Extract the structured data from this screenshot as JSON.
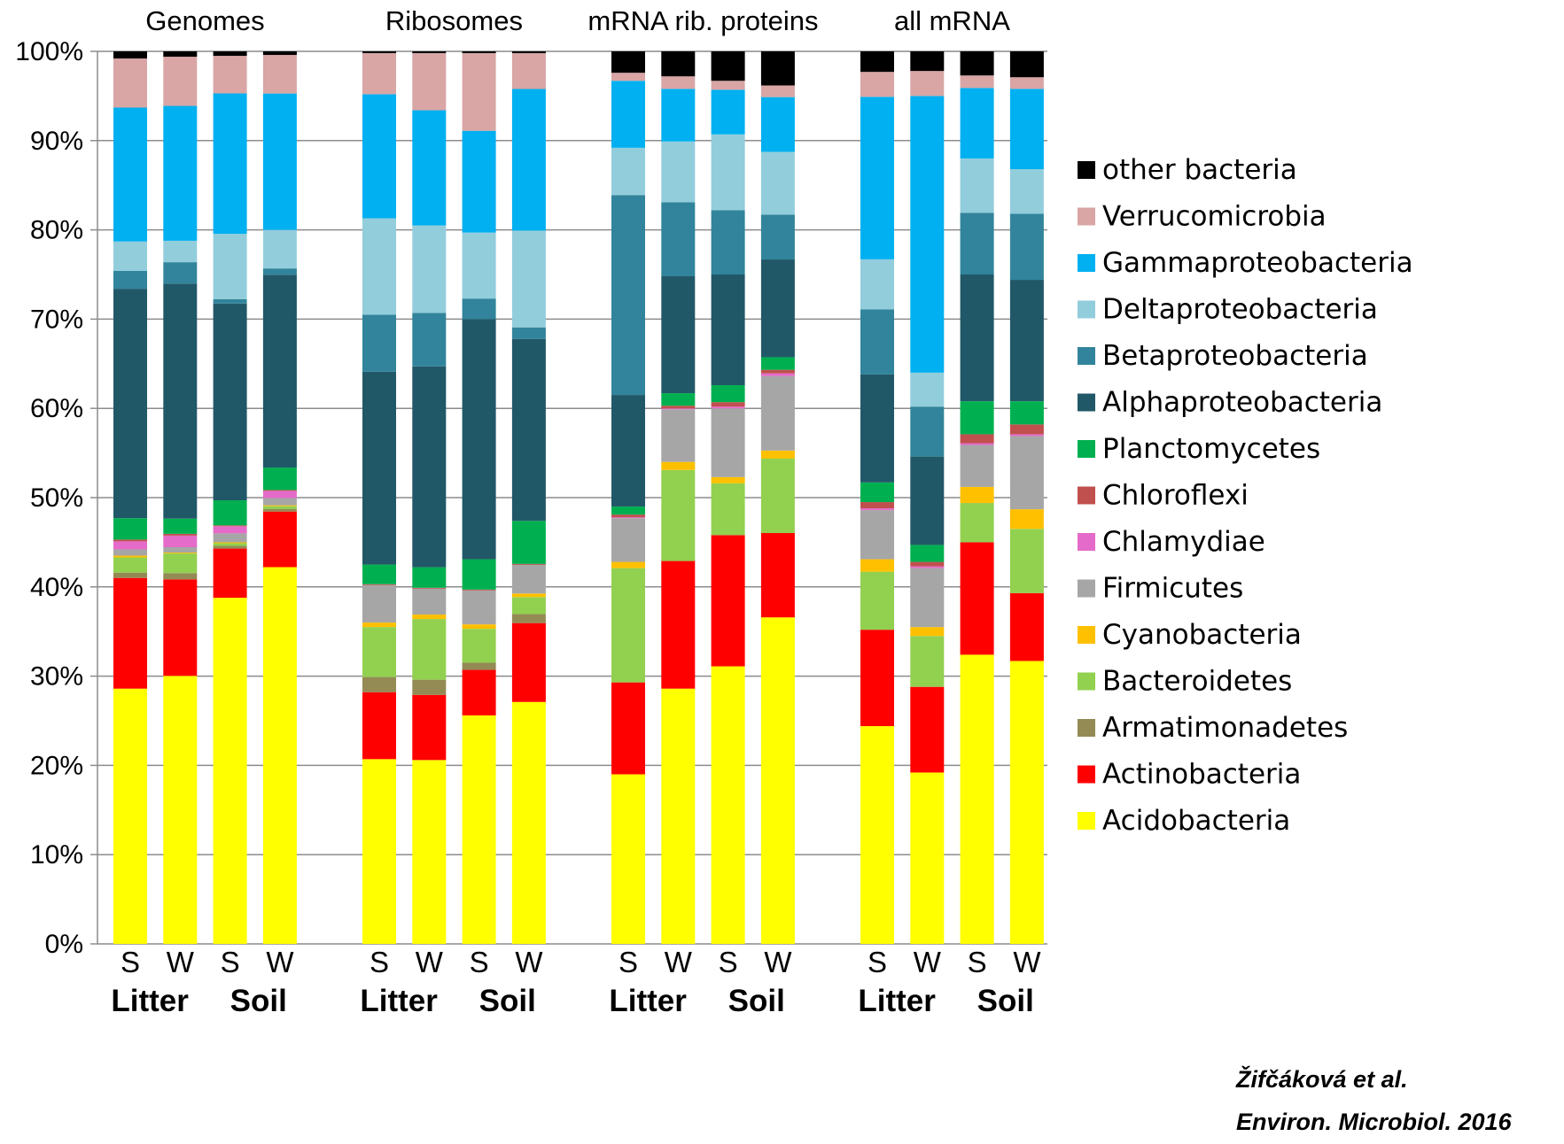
{
  "chart_data": {
    "type": "stacked-bar-100",
    "ylim": [
      0,
      100
    ],
    "yticks": [
      "0%",
      "10%",
      "20%",
      "30%",
      "40%",
      "50%",
      "60%",
      "70%",
      "80%",
      "90%",
      "100%"
    ],
    "legend_position": "right",
    "grid": true,
    "series": [
      {
        "name": "Acidobacteria",
        "color": "#ffff00"
      },
      {
        "name": "Actinobacteria",
        "color": "#ff0000"
      },
      {
        "name": "Armatimonadetes",
        "color": "#948a54"
      },
      {
        "name": "Bacteroidetes",
        "color": "#92d050"
      },
      {
        "name": "Cyanobacteria",
        "color": "#ffc000"
      },
      {
        "name": "Firmicutes",
        "color": "#a6a6a6"
      },
      {
        "name": "Chlamydiae",
        "color": "#e46bc9"
      },
      {
        "name": "Chloroflexi",
        "color": "#c0504d"
      },
      {
        "name": "Planctomycetes",
        "color": "#00b050"
      },
      {
        "name": "Alphaproteobacteria",
        "color": "#215868"
      },
      {
        "name": "Betaproteobacteria",
        "color": "#31849b"
      },
      {
        "name": "Deltaproteobacteria",
        "color": "#92cddc"
      },
      {
        "name": "Gammaproteobacteria",
        "color": "#00b0f0"
      },
      {
        "name": "Verrucomicrobia",
        "color": "#d9a5a5"
      },
      {
        "name": "other bacteria",
        "color": "#000000"
      }
    ],
    "groups": [
      {
        "title": "Genomes",
        "bars": [
          {
            "label": "S",
            "values": [
              28.6,
              12.4,
              0.6,
              1.7,
              0.2,
              0.7,
              0.9,
              0.2,
              2.4,
              25.7,
              2.0,
              3.3,
              15.0,
              5.5,
              0.8
            ]
          },
          {
            "label": "W",
            "values": [
              30.0,
              10.8,
              0.7,
              2.2,
              0.1,
              0.6,
              1.3,
              0.2,
              1.7,
              26.3,
              2.4,
              2.4,
              15.1,
              5.5,
              0.6
            ]
          },
          {
            "label": "S",
            "values": [
              38.7,
              5.5,
              0.3,
              0.3,
              0.1,
              1.0,
              0.8,
              0.1,
              2.8,
              22.0,
              0.5,
              7.3,
              15.7,
              4.2,
              0.5
            ]
          },
          {
            "label": "W",
            "values": [
              42.0,
              6.2,
              0.3,
              0.3,
              0.1,
              0.8,
              0.8,
              0.1,
              2.5,
              21.5,
              0.7,
              4.3,
              15.2,
              4.3,
              0.4
            ]
          }
        ]
      },
      {
        "title": "Ribosomes",
        "bars": [
          {
            "label": "S",
            "values": [
              20.7,
              7.5,
              1.7,
              5.6,
              0.5,
              4.2,
              0.0,
              0.1,
              2.2,
              21.6,
              6.4,
              10.8,
              13.9,
              4.6,
              0.2
            ]
          },
          {
            "label": "W",
            "values": [
              20.6,
              7.3,
              1.7,
              6.8,
              0.5,
              2.9,
              0.0,
              0.1,
              2.3,
              22.5,
              6.0,
              9.8,
              12.9,
              6.4,
              0.2
            ]
          },
          {
            "label": "S",
            "values": [
              25.6,
              5.1,
              0.8,
              3.8,
              0.5,
              3.8,
              0.0,
              0.1,
              3.4,
              26.9,
              2.3,
              7.4,
              11.4,
              8.7,
              0.2
            ]
          },
          {
            "label": "W",
            "values": [
              27.0,
              8.8,
              1.0,
              1.9,
              0.4,
              3.2,
              0.0,
              0.1,
              4.8,
              20.3,
              1.3,
              10.8,
              15.8,
              4.0,
              0.2
            ]
          }
        ]
      },
      {
        "title": "mRNA rib. proteins",
        "bars": [
          {
            "label": "S",
            "values": [
              19.0,
              10.3,
              0.0,
              12.8,
              0.7,
              4.9,
              0.1,
              0.3,
              0.9,
              12.5,
              22.4,
              5.3,
              7.5,
              0.9,
              2.4
            ]
          },
          {
            "label": "W",
            "values": [
              28.6,
              14.3,
              0.0,
              10.2,
              0.9,
              5.9,
              0.1,
              0.3,
              1.4,
              13.1,
              8.3,
              6.8,
              5.9,
              1.4,
              2.8
            ]
          },
          {
            "label": "S",
            "values": [
              31.1,
              14.7,
              0.0,
              5.8,
              0.7,
              7.7,
              0.2,
              0.5,
              1.9,
              12.4,
              7.2,
              8.5,
              5.0,
              1.0,
              3.3
            ]
          },
          {
            "label": "W",
            "values": [
              36.4,
              9.4,
              0.0,
              8.3,
              0.9,
              8.3,
              0.3,
              0.4,
              1.4,
              10.9,
              5.0,
              7.0,
              6.1,
              1.3,
              3.8
            ]
          }
        ]
      },
      {
        "title": "all mRNA",
        "bars": [
          {
            "label": "S",
            "values": [
              24.4,
              10.8,
              0.0,
              6.5,
              1.4,
              5.5,
              0.2,
              0.7,
              2.2,
              12.1,
              7.3,
              5.6,
              18.2,
              2.8,
              2.3
            ]
          },
          {
            "label": "W",
            "values": [
              19.2,
              9.6,
              0.0,
              5.7,
              1.0,
              6.6,
              0.2,
              0.5,
              1.9,
              9.9,
              5.6,
              3.8,
              31.0,
              2.8,
              2.2
            ]
          },
          {
            "label": "S",
            "values": [
              32.4,
              12.6,
              0.0,
              4.4,
              1.8,
              4.7,
              0.2,
              1.0,
              3.7,
              14.2,
              6.9,
              6.1,
              7.9,
              1.4,
              2.7
            ]
          },
          {
            "label": "W",
            "values": [
              31.7,
              7.6,
              0.0,
              7.2,
              2.2,
              8.2,
              0.2,
              1.1,
              2.6,
              13.6,
              7.4,
              5.0,
              9.0,
              1.3,
              2.9
            ]
          }
        ]
      }
    ],
    "habitat_labels": [
      "Litter",
      "Soil"
    ]
  },
  "citation": {
    "line1": "Žifčáková et al.",
    "line2": "Environ. Microbiol. 2016"
  }
}
